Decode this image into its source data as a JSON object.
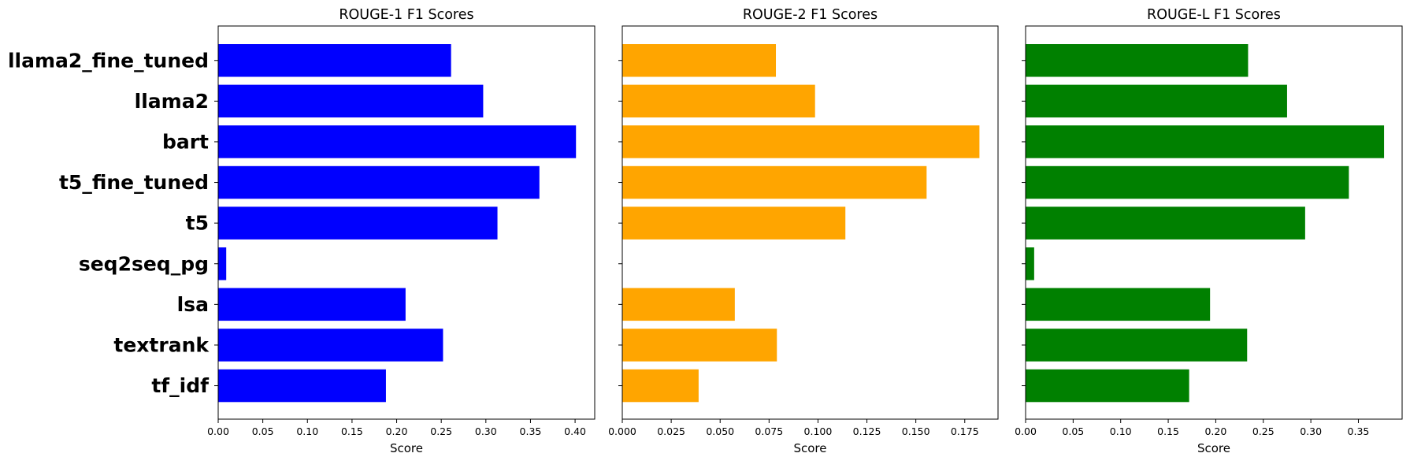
{
  "chart_data": [
    {
      "type": "bar",
      "orientation": "horizontal",
      "title": "ROUGE-1 F1 Scores",
      "xlabel": "Score",
      "categories": [
        "llama2_fine_tuned",
        "llama2",
        "bart",
        "t5_fine_tuned",
        "t5",
        "seq2seq_pg",
        "lsa",
        "textrank",
        "tf_idf"
      ],
      "values": [
        0.261,
        0.297,
        0.401,
        0.36,
        0.313,
        0.009,
        0.21,
        0.252,
        0.188
      ],
      "color": "#0000ff",
      "xlim": [
        0,
        0.422
      ],
      "xticks": [
        "0.00",
        "0.05",
        "0.10",
        "0.15",
        "0.20",
        "0.25",
        "0.30",
        "0.35",
        "0.40"
      ],
      "show_category_labels": true
    },
    {
      "type": "bar",
      "orientation": "horizontal",
      "title": "ROUGE-2 F1 Scores",
      "xlabel": "Score",
      "categories": [
        "llama2_fine_tuned",
        "llama2",
        "bart",
        "t5_fine_tuned",
        "t5",
        "seq2seq_pg",
        "lsa",
        "textrank",
        "tf_idf"
      ],
      "values": [
        0.0785,
        0.0985,
        0.1825,
        0.1555,
        0.114,
        0.0,
        0.0575,
        0.079,
        0.039
      ],
      "color": "#ffa500",
      "xlim": [
        0,
        0.192
      ],
      "xticks": [
        "0.000",
        "0.025",
        "0.050",
        "0.075",
        "0.100",
        "0.125",
        "0.150",
        "0.175"
      ],
      "show_category_labels": false
    },
    {
      "type": "bar",
      "orientation": "horizontal",
      "title": "ROUGE-L F1 Scores",
      "xlabel": "Score",
      "categories": [
        "llama2_fine_tuned",
        "llama2",
        "bart",
        "t5_fine_tuned",
        "t5",
        "seq2seq_pg",
        "lsa",
        "textrank",
        "tf_idf"
      ],
      "values": [
        0.234,
        0.275,
        0.377,
        0.34,
        0.294,
        0.009,
        0.194,
        0.233,
        0.172
      ],
      "color": "#008000",
      "xlim": [
        0,
        0.396
      ],
      "xticks": [
        "0.00",
        "0.05",
        "0.10",
        "0.15",
        "0.20",
        "0.25",
        "0.30",
        "0.35"
      ],
      "show_category_labels": false
    }
  ]
}
